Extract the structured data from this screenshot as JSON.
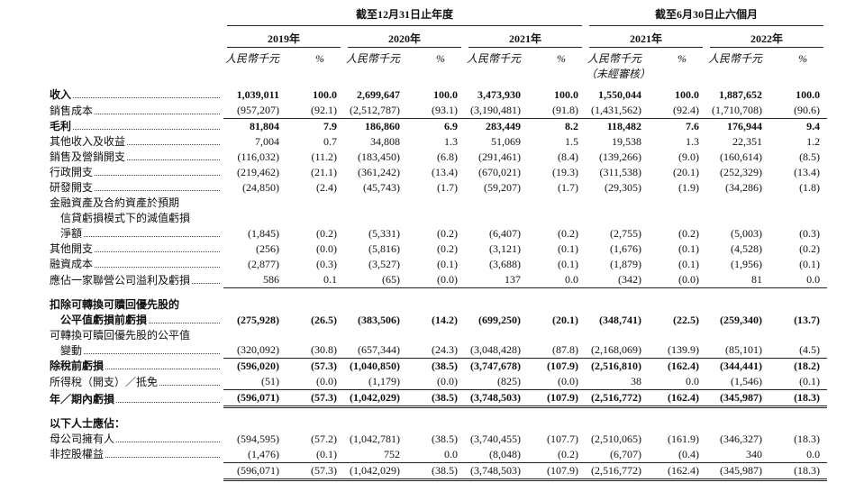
{
  "header": {
    "groups": [
      "截至12月31日止年度",
      "截至6月30日止六個月"
    ],
    "years": [
      "2019年",
      "2020年",
      "2021年",
      "2021年",
      "2022年"
    ],
    "amount_unit": "人民幣千元",
    "percent_unit": "%",
    "unaudited": "（未經審核）"
  },
  "table": {
    "rows": [
      {
        "label": [
          "收入"
        ],
        "values": [
          "1,039,011",
          "100.0",
          "2,699,647",
          "100.0",
          "3,473,930",
          "100.0",
          "1,550,044",
          "100.0",
          "1,887,652",
          "100.0"
        ]
      },
      {
        "label": [
          "銷售成本"
        ],
        "values": [
          "(957,207)",
          "(92.1)",
          "(2,512,787)",
          "(93.1)",
          "(3,190,481)",
          "(91.8)",
          "(1,431,562)",
          "(92.4)",
          "(1,710,708)",
          "(90.6)"
        ]
      },
      {
        "label": [
          "毛利"
        ],
        "values": [
          "81,804",
          "7.9",
          "186,860",
          "6.9",
          "283,449",
          "8.2",
          "118,482",
          "7.6",
          "176,944",
          "9.4"
        ]
      },
      {
        "label": [
          "其他收入及收益"
        ],
        "values": [
          "7,004",
          "0.7",
          "34,808",
          "1.3",
          "51,069",
          "1.5",
          "19,538",
          "1.3",
          "22,351",
          "1.2"
        ]
      },
      {
        "label": [
          "銷售及營銷開支"
        ],
        "values": [
          "(116,032)",
          "(11.2)",
          "(183,450)",
          "(6.8)",
          "(291,461)",
          "(8.4)",
          "(139,266)",
          "(9.0)",
          "(160,614)",
          "(8.5)"
        ]
      },
      {
        "label": [
          "行政開支"
        ],
        "values": [
          "(219,462)",
          "(21.1)",
          "(361,242)",
          "(13.4)",
          "(670,021)",
          "(19.3)",
          "(311,538)",
          "(20.1)",
          "(252,329)",
          "(13.4)"
        ]
      },
      {
        "label": [
          "研發開支"
        ],
        "values": [
          "(24,850)",
          "(2.4)",
          "(45,743)",
          "(1.7)",
          "(59,207)",
          "(1.7)",
          "(29,305)",
          "(1.9)",
          "(34,286)",
          "(1.8)"
        ]
      },
      {
        "label": [
          "金融資產及合約資產於預期",
          "信貸虧損模式下的減值虧損",
          "淨額"
        ],
        "values": [
          "(1,845)",
          "(0.2)",
          "(5,331)",
          "(0.2)",
          "(6,407)",
          "(0.2)",
          "(2,755)",
          "(0.2)",
          "(5,003)",
          "(0.3)"
        ]
      },
      {
        "label": [
          "其他開支"
        ],
        "values": [
          "(256)",
          "(0.0)",
          "(5,816)",
          "(0.2)",
          "(3,121)",
          "(0.1)",
          "(1,676)",
          "(0.1)",
          "(4,528)",
          "(0.2)"
        ]
      },
      {
        "label": [
          "融資成本"
        ],
        "values": [
          "(2,877)",
          "(0.3)",
          "(3,527)",
          "(0.1)",
          "(3,688)",
          "(0.1)",
          "(1,879)",
          "(0.1)",
          "(1,956)",
          "(0.1)"
        ]
      },
      {
        "label": [
          "應佔一家聯營公司溢利及虧損"
        ],
        "values": [
          "586",
          "0.1",
          "(65)",
          "(0.0)",
          "137",
          "0.0",
          "(342)",
          "(0.0)",
          "81",
          "0.0"
        ]
      },
      {
        "label": [
          "扣除可轉換可贖回優先股的",
          "公平值虧損前虧損"
        ],
        "values": [
          "(275,928)",
          "(26.5)",
          "(383,506)",
          "(14.2)",
          "(699,250)",
          "(20.1)",
          "(348,741)",
          "(22.5)",
          "(259,340)",
          "(13.7)"
        ]
      },
      {
        "label": [
          "可轉換可贖回優先股的公平值",
          "變動"
        ],
        "values": [
          "(320,092)",
          "(30.8)",
          "(657,344)",
          "(24.3)",
          "(3,048,428)",
          "(87.8)",
          "(2,168,069)",
          "(139.9)",
          "(85,101)",
          "(4.5)"
        ]
      },
      {
        "label": [
          "除稅前虧損"
        ],
        "values": [
          "(596,020)",
          "(57.3)",
          "(1,040,850)",
          "(38.5)",
          "(3,747,678)",
          "(107.9)",
          "(2,516,810)",
          "(162.4)",
          "(344,441)",
          "(18.2)"
        ]
      },
      {
        "label": [
          "所得稅（開支）／抵免"
        ],
        "values": [
          "(51)",
          "(0.0)",
          "(1,179)",
          "(0.0)",
          "(825)",
          "(0.0)",
          "38",
          "0.0",
          "(1,546)",
          "(0.1)"
        ]
      },
      {
        "label": [
          "年／期內虧損"
        ],
        "values": [
          "(596,071)",
          "(57.3)",
          "(1,042,029)",
          "(38.5)",
          "(3,748,503)",
          "(107.9)",
          "(2,516,772)",
          "(162.4)",
          "(345,987)",
          "(18.3)"
        ]
      },
      {
        "label": [
          "以下人士應佔："
        ]
      },
      {
        "label": [
          "母公司擁有人"
        ],
        "values": [
          "(594,595)",
          "(57.2)",
          "(1,042,781)",
          "(38.5)",
          "(3,740,455)",
          "(107.7)",
          "(2,510,065)",
          "(161.9)",
          "(346,327)",
          "(18.3)"
        ]
      },
      {
        "label": [
          "非控股權益"
        ],
        "values": [
          "(1,476)",
          "(0.1)",
          "752",
          "0.0",
          "(8,048)",
          "(0.2)",
          "(6,707)",
          "(0.4)",
          "340",
          "0.0"
        ]
      },
      {
        "label": [],
        "values": [
          "(596,071)",
          "(57.3)",
          "(1,042,029)",
          "(38.5)",
          "(3,748,503)",
          "(107.9)",
          "(2,516,772)",
          "(162.4)",
          "(345,987)",
          "(18.3)"
        ]
      }
    ]
  }
}
